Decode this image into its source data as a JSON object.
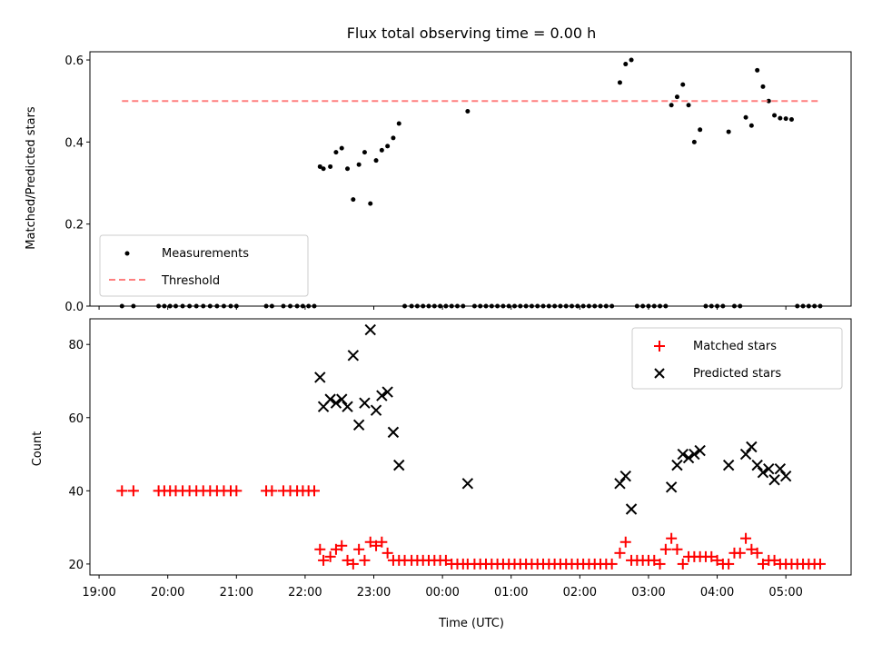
{
  "chart_data": [
    {
      "type": "scatter",
      "title": "Flux total observing time = 0.00 h",
      "xlabel": "",
      "ylabel": "Matched/Predicted stars",
      "ylim": [
        0.0,
        0.62
      ],
      "yticks": [
        "0.0",
        "0.2",
        "0.4",
        "0.6"
      ],
      "ytick_values": [
        0.0,
        0.2,
        0.4,
        0.6
      ],
      "legend_position": "lower-left",
      "grid": false,
      "series": [
        {
          "name": "Measurements",
          "color": "#000000",
          "marker": "dot",
          "x": [
            "19:20",
            "19:30",
            "19:52",
            "19:57",
            "20:02",
            "20:07",
            "20:13",
            "20:19",
            "20:25",
            "20:31",
            "20:37",
            "20:43",
            "20:49",
            "20:55",
            "21:00",
            "21:26",
            "21:31",
            "21:41",
            "21:47",
            "21:53",
            "21:58",
            "22:03",
            "22:08",
            "22:13",
            "22:16",
            "22:22",
            "22:27",
            "22:32",
            "22:37",
            "22:42",
            "22:47",
            "22:52",
            "22:57",
            "23:02",
            "23:07",
            "23:12",
            "23:17",
            "23:22",
            "23:27",
            "23:33",
            "23:38",
            "23:43",
            "23:48",
            "23:53",
            "23:58",
            "00:03",
            "00:08",
            "00:13",
            "00:18",
            "00:22",
            "00:28",
            "00:33",
            "00:38",
            "00:43",
            "00:48",
            "00:53",
            "00:58",
            "01:03",
            "01:08",
            "01:13",
            "01:18",
            "01:23",
            "01:28",
            "01:33",
            "01:38",
            "01:43",
            "01:48",
            "01:53",
            "01:58",
            "02:03",
            "02:08",
            "02:13",
            "02:18",
            "02:23",
            "02:28",
            "02:35",
            "02:40",
            "02:45",
            "02:50",
            "02:55",
            "03:00",
            "03:05",
            "03:10",
            "03:15",
            "03:20",
            "03:25",
            "03:30",
            "03:35",
            "03:40",
            "03:45",
            "03:50",
            "03:55",
            "04:00",
            "04:05",
            "04:10",
            "04:15",
            "04:20",
            "04:25",
            "04:30",
            "04:35",
            "04:40",
            "04:45",
            "04:50",
            "04:55",
            "05:00",
            "05:05",
            "05:10",
            "05:15",
            "05:20",
            "05:25",
            "05:30"
          ],
          "y": [
            0.0,
            0.0,
            0.0,
            0.0,
            0.0,
            0.0,
            0.0,
            0.0,
            0.0,
            0.0,
            0.0,
            0.0,
            0.0,
            0.0,
            0.0,
            0.0,
            0.0,
            0.0,
            0.0,
            0.0,
            0.0,
            0.0,
            0.0,
            0.34,
            0.335,
            0.34,
            0.375,
            0.385,
            0.335,
            0.26,
            0.345,
            0.375,
            0.25,
            0.355,
            0.38,
            0.39,
            0.41,
            0.445,
            0.0,
            0.0,
            0.0,
            0.0,
            0.0,
            0.0,
            0.0,
            0.0,
            0.0,
            0.0,
            0.0,
            0.475,
            0.0,
            0.0,
            0.0,
            0.0,
            0.0,
            0.0,
            0.0,
            0.0,
            0.0,
            0.0,
            0.0,
            0.0,
            0.0,
            0.0,
            0.0,
            0.0,
            0.0,
            0.0,
            0.0,
            0.0,
            0.0,
            0.0,
            0.0,
            0.0,
            0.0,
            0.545,
            0.59,
            0.6,
            0.0,
            0.0,
            0.0,
            0.0,
            0.0,
            0.0,
            0.49,
            0.51,
            0.54,
            0.49,
            0.4,
            0.43,
            0.0,
            0.0,
            0.0,
            0.0,
            0.425,
            0.0,
            0.0,
            0.46,
            0.44,
            0.575,
            0.535,
            0.5,
            0.465,
            0.458,
            0.457,
            0.455,
            0.0,
            0.0,
            0.0,
            0.0,
            0.0
          ]
        },
        {
          "name": "Threshold",
          "color": "#ff7f7f",
          "style": "dashed",
          "x": [
            "19:20",
            "05:30"
          ],
          "y": [
            0.5,
            0.5
          ]
        }
      ]
    },
    {
      "type": "scatter",
      "title": "",
      "xlabel": "Time (UTC)",
      "ylabel": "Count",
      "ylim": [
        17,
        87
      ],
      "yticks": [
        "20",
        "40",
        "60",
        "80"
      ],
      "ytick_values": [
        20,
        40,
        60,
        80
      ],
      "legend_position": "upper-right",
      "grid": false,
      "series": [
        {
          "name": "Matched stars",
          "color": "#ff0000",
          "marker": "plus",
          "x": [
            "19:20",
            "19:30",
            "19:52",
            "19:57",
            "20:02",
            "20:07",
            "20:13",
            "20:19",
            "20:25",
            "20:31",
            "20:37",
            "20:43",
            "20:49",
            "20:55",
            "21:00",
            "21:26",
            "21:31",
            "21:41",
            "21:47",
            "21:53",
            "21:58",
            "22:03",
            "22:08",
            "22:13",
            "22:16",
            "22:22",
            "22:27",
            "22:32",
            "22:37",
            "22:42",
            "22:47",
            "22:52",
            "22:57",
            "23:02",
            "23:07",
            "23:12",
            "23:17",
            "23:22",
            "23:27",
            "23:33",
            "23:38",
            "23:43",
            "23:48",
            "23:53",
            "23:58",
            "00:03",
            "00:08",
            "00:13",
            "00:18",
            "00:22",
            "00:28",
            "00:33",
            "00:38",
            "00:43",
            "00:48",
            "00:53",
            "00:58",
            "01:03",
            "01:08",
            "01:13",
            "01:18",
            "01:23",
            "01:28",
            "01:33",
            "01:38",
            "01:43",
            "01:48",
            "01:53",
            "01:58",
            "02:03",
            "02:08",
            "02:13",
            "02:18",
            "02:23",
            "02:28",
            "02:35",
            "02:40",
            "02:45",
            "02:50",
            "02:55",
            "03:00",
            "03:05",
            "03:10",
            "03:15",
            "03:20",
            "03:25",
            "03:30",
            "03:35",
            "03:40",
            "03:45",
            "03:50",
            "03:55",
            "04:00",
            "04:05",
            "04:10",
            "04:15",
            "04:20",
            "04:25",
            "04:30",
            "04:35",
            "04:40",
            "04:45",
            "04:50",
            "04:55",
            "05:00",
            "05:05",
            "05:10",
            "05:15",
            "05:20",
            "05:25",
            "05:30"
          ],
          "y": [
            40,
            40,
            40,
            40,
            40,
            40,
            40,
            40,
            40,
            40,
            40,
            40,
            40,
            40,
            40,
            40,
            40,
            40,
            40,
            40,
            40,
            40,
            40,
            24,
            21,
            22,
            24,
            25,
            21,
            20,
            24,
            21,
            26,
            25,
            26,
            23,
            21,
            21,
            21,
            21,
            21,
            21,
            21,
            21,
            21,
            21,
            20,
            20,
            20,
            20,
            20,
            20,
            20,
            20,
            20,
            20,
            20,
            20,
            20,
            20,
            20,
            20,
            20,
            20,
            20,
            20,
            20,
            20,
            20,
            20,
            20,
            20,
            20,
            20,
            20,
            23,
            26,
            21,
            21,
            21,
            21,
            21,
            20,
            24,
            27,
            24,
            20,
            22,
            22,
            22,
            22,
            22,
            21,
            20,
            20,
            23,
            23,
            27,
            24,
            23,
            20,
            21,
            21,
            20,
            20,
            20,
            20,
            20,
            20,
            20,
            20
          ]
        },
        {
          "name": "Predicted stars",
          "color": "#000000",
          "marker": "x",
          "x": [
            "22:13",
            "22:16",
            "22:22",
            "22:27",
            "22:32",
            "22:37",
            "22:42",
            "22:47",
            "22:52",
            "22:57",
            "23:02",
            "23:07",
            "23:12",
            "23:17",
            "23:22",
            "00:22",
            "02:35",
            "02:40",
            "02:45",
            "03:20",
            "03:25",
            "03:30",
            "03:35",
            "03:40",
            "03:45",
            "04:10",
            "04:25",
            "04:30",
            "04:35",
            "04:40",
            "04:45",
            "04:50",
            "04:55",
            "05:00"
          ],
          "y": [
            71,
            63,
            65,
            64,
            65,
            63,
            77,
            58,
            64,
            84,
            62,
            66,
            67,
            56,
            47,
            42,
            42,
            44,
            35,
            41,
            47,
            50,
            49,
            50,
            51,
            47,
            50,
            52,
            47,
            45,
            46,
            43,
            46,
            44
          ]
        }
      ]
    }
  ],
  "x_axis": {
    "ticks": [
      "19:00",
      "20:00",
      "21:00",
      "22:00",
      "23:00",
      "00:00",
      "01:00",
      "02:00",
      "03:00",
      "04:00",
      "05:00"
    ],
    "xlim": [
      "18:52",
      "05:57"
    ]
  }
}
